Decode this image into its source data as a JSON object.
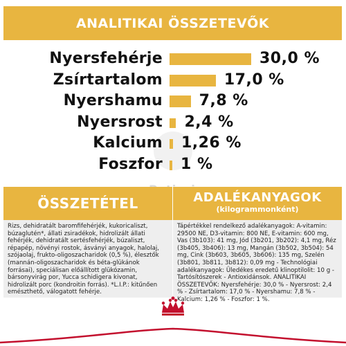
{
  "colors": {
    "accent": "#e8b540",
    "brand_red": "#c3102e"
  },
  "headers": {
    "analytics": "ANALITIKAI ÖSSZETEVŐK",
    "composition": "ÖSSZETÉTEL",
    "additives_line1": "ADALÉKANYAGOK",
    "additives_line2": "(kilogrammonként)"
  },
  "nutrients": [
    {
      "label": "Nyersfehérje",
      "value": "30,0 %",
      "percent": 30.0
    },
    {
      "label": "Zsírtartalom",
      "value": "17,0 %",
      "percent": 17.0
    },
    {
      "label": "Nyershamu",
      "value": "7,8 %",
      "percent": 7.8
    },
    {
      "label": "Nyersrost",
      "value": "2,4 %",
      "percent": 2.4
    },
    {
      "label": "Kalcium",
      "value": "1,26 %",
      "percent": 1.26
    },
    {
      "label": "Foszfor",
      "value": "1 %",
      "percent": 1.0
    }
  ],
  "composition_text": "Rizs, dehidratált baromfifehérjék, kukoricaliszt, búzaglutén*, állati zsiradékok, hidrolizált állati fehérjék, dehidratált sertésfehérjék, búzaliszt, répapép, növényi rostok, ásványi anyagok, halolaj, szójaolaj, frukto-oligoszacharidok (0,5 %), élesztők (mannán-oligoszacharidok és béta-glükánok forrásai), speciálisan előállított glükózamin, bársonyvirág por, Yucca schidigera kivonat, hidrolizált porc (kondroitin forrás). *L.I.P.: kitűnően emészthető, válogatott fehérje.",
  "additives_text": "Tápértékkel rendelkező adalékanyagok: A-vitamin: 29500 NE, D3-vitamin: 800 NE, E-vitamin: 600 mg, Vas (3b103): 41 mg, Jód (3b201, 3b202): 4,1 mg, Réz (3b405, 3b406): 13 mg, Mangán (3b502, 3b504): 54 mg, Cink (3b603, 3b605, 3b606): 135 mg, Szelén (3b801, 3b811, 3b812): 0,09 mg - Technológiai adalékanyagok: Üledékes eredetű klinoptilolit: 10 g - Tartósítószerek - Antioxidánsok. ANALITIKAI ÖSSZETEVŐK: Nyersfehérje: 30,0 % - Nyersrost: 2,4 % - Zsírtartalom: 17,0 % - Nyershamu: 7,8 % - Kalcium: 1,26 % - Foszfor: 1 %.",
  "watermark": "Petissimo",
  "logo": "royal-canin-crown-icon"
}
